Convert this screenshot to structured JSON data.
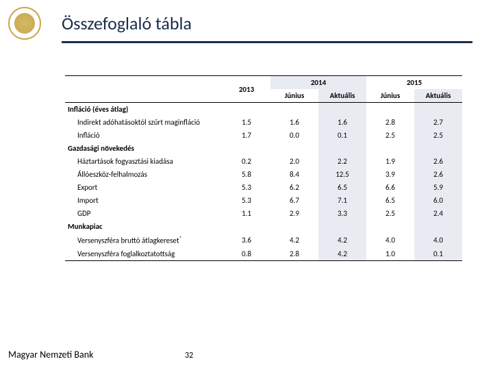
{
  "title": "Összefoglaló tábla",
  "footer": "Magyar Nemzeti Bank",
  "pagenum": "32",
  "headers": {
    "y2013": "2013",
    "y2014": "2014",
    "y2015": "2015",
    "jun": "Június",
    "akt": "Aktuális"
  },
  "sections": {
    "inflacio": "Infláció (éves átlag)",
    "gazd": "Gazdasági növekedés",
    "munka": "Munkapiac"
  },
  "rows": {
    "r1": {
      "label": "Indirekt adóhatásoktól szűrt maginfláció",
      "v": [
        "1.5",
        "1.6",
        "1.6",
        "2.8",
        "2.7"
      ]
    },
    "r2": {
      "label": "Infláció",
      "v": [
        "1.7",
        "0.0",
        "0.1",
        "2.5",
        "2.5"
      ]
    },
    "r3": {
      "label": "Háztartások fogyasztási kiadása",
      "v": [
        "0.2",
        "2.0",
        "2.2",
        "1.9",
        "2.6"
      ]
    },
    "r4": {
      "label": "Állóeszköz-felhalmozás",
      "v": [
        "5.8",
        "8.4",
        "12.5",
        "3.9",
        "2.6"
      ]
    },
    "r5": {
      "label": "Export",
      "v": [
        "5.3",
        "6.2",
        "6.5",
        "6.6",
        "5.9"
      ]
    },
    "r6": {
      "label": "Import",
      "v": [
        "5.3",
        "6.7",
        "7.1",
        "6.5",
        "6.0"
      ]
    },
    "r7": {
      "label": "GDP",
      "v": [
        "1.1",
        "2.9",
        "3.3",
        "2.5",
        "2.4"
      ]
    },
    "r8": {
      "label": "Versenyszféra bruttó átlagkereset",
      "v": [
        "3.6",
        "4.2",
        "4.2",
        "4.0",
        "4.0"
      ]
    },
    "r9": {
      "label": "Versenyszféra foglalkoztatottság",
      "v": [
        "0.8",
        "2.8",
        "4.2",
        "1.0",
        "0.1"
      ]
    }
  },
  "colors": {
    "title": "#1a2b4a",
    "rule": "#1a2b4a",
    "shade": "#e8ecf2",
    "logo": "#c9a84f"
  },
  "fontsizes": {
    "title": 26,
    "table": 11,
    "footer": 14
  }
}
